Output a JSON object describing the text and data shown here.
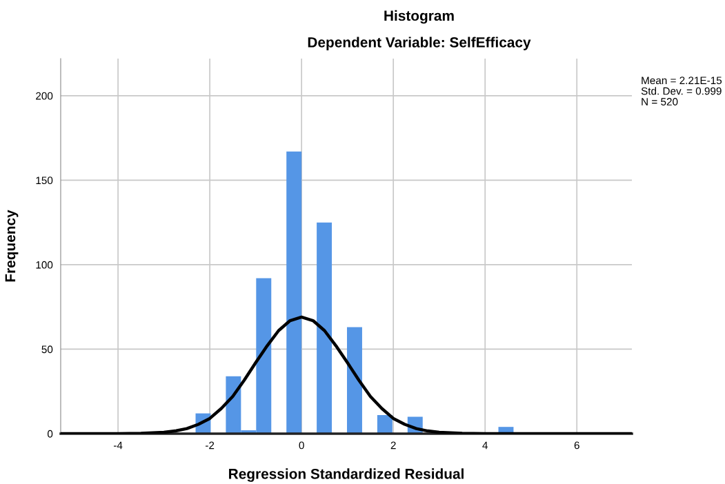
{
  "chart_data": {
    "type": "histogram",
    "title": "Histogram",
    "subtitle": "Dependent Variable: SelfEfficacy",
    "xlabel": "Regression Standardized Residual",
    "ylabel": "Frequency",
    "bins": [
      -2.31,
      -1.98,
      -1.65,
      -1.32,
      -0.99,
      -0.66,
      -0.33,
      0,
      0.33,
      0.66,
      0.99,
      1.32,
      1.65,
      1.98,
      2.31,
      2.64,
      2.97,
      3.3,
      3.63,
      3.96,
      4.29,
      4.62
    ],
    "values": [
      12,
      0,
      34,
      2,
      92,
      0,
      167,
      0,
      125,
      0,
      63,
      0,
      11,
      0,
      10,
      0,
      0,
      0,
      0,
      0,
      4
    ],
    "color": "#5596e6",
    "series": [
      {
        "type": "line",
        "color": "#000000",
        "x": [
          -5.25,
          -4,
          -3.5,
          -3,
          -2.75,
          -2.5,
          -2.25,
          -2,
          -1.75,
          -1.5,
          -1.25,
          -1,
          -0.75,
          -0.5,
          -0.25,
          0,
          0.25,
          0.5,
          0.75,
          1,
          1.25,
          1.5,
          1.75,
          2,
          2.25,
          2.5,
          2.75,
          3,
          3.5,
          4,
          7.2
        ],
        "values": [
          0,
          0,
          0.2,
          0.8,
          1.6,
          3,
          5.5,
          9,
          14.9,
          22,
          31.6,
          42,
          52,
          61,
          66.9,
          69,
          66.9,
          61,
          52,
          42,
          31.6,
          22,
          14.9,
          9,
          5.5,
          3,
          1.6,
          0.8,
          0.2,
          0,
          0
        ]
      }
    ],
    "xlim": [
      -5.25,
      7.2
    ],
    "ylim": [
      0,
      222
    ],
    "xticks": [
      -4,
      -2,
      0,
      2,
      4,
      6
    ],
    "yticks": [
      0,
      50,
      100,
      150,
      200
    ],
    "grid": true,
    "annotations": [
      "Mean = 2.21E-15",
      "Std. Dev. = 0.999",
      "N = 520"
    ]
  }
}
